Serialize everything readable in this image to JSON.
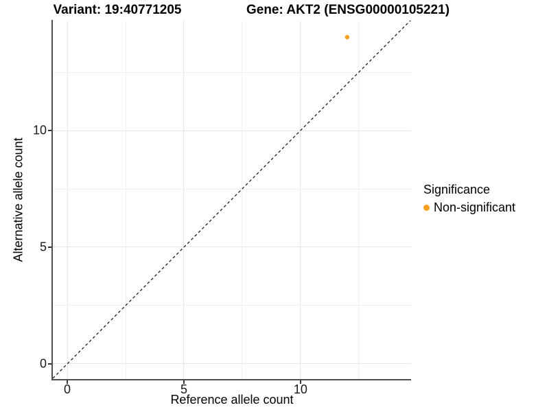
{
  "header": {
    "variant_title": "Variant: 19:40771205",
    "gene_title": "Gene: AKT2 (ENSG00000105221)"
  },
  "chart_data": {
    "type": "scatter",
    "xlabel": "Reference allele count",
    "ylabel": "Alternative allele count",
    "xlim": [
      -0.62,
      14.74
    ],
    "ylim": [
      -0.68,
      14.71
    ],
    "x_major_ticks": [
      0,
      5,
      10
    ],
    "x_tick_labels": [
      "0",
      "5",
      "10"
    ],
    "y_major_ticks": [
      0,
      5,
      10
    ],
    "y_tick_labels": [
      "0",
      "5",
      "10"
    ],
    "x_minor_ticks": [
      2.5,
      7.5,
      12.5
    ],
    "y_minor_ticks": [
      2.5,
      7.5,
      12.5
    ],
    "grid": true,
    "points": [
      {
        "x": 12,
        "y": 14,
        "series": "Non-significant"
      }
    ],
    "reference_line": {
      "slope": 1,
      "intercept": 0,
      "style": "dashed"
    },
    "legend_position": "right"
  },
  "legend": {
    "title": "Significance",
    "items": [
      {
        "label": "Non-significant",
        "color": "#FAA01E"
      }
    ]
  },
  "colors": {
    "point": "#FAA01E",
    "grid_major": "#E6E6E6",
    "grid_minor": "#F1F1F1",
    "axis_line": "#4E4E4E",
    "diagonal": "#1A1A1A"
  }
}
